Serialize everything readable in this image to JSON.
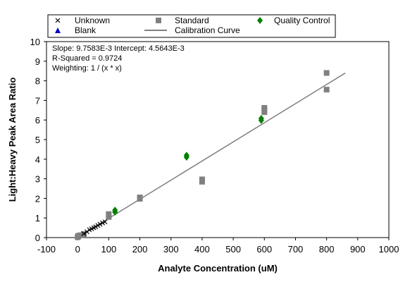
{
  "chart_data": {
    "type": "scatter",
    "title": "",
    "xlabel": "Analyte Concentration (uM)",
    "ylabel": "Light:Heavy Peak Area Ratio",
    "xlim": [
      -100,
      1000
    ],
    "ylim": [
      0,
      10
    ],
    "x_ticks": [
      -100,
      0,
      100,
      200,
      300,
      400,
      500,
      600,
      700,
      800,
      900,
      1000
    ],
    "y_ticks": [
      0,
      1,
      2,
      3,
      4,
      5,
      6,
      7,
      8,
      9,
      10
    ],
    "grid": false,
    "legend_position": "top",
    "annotations": [
      "Slope: 9.7583E-3 Intercept: 4.5643E-3",
      "R-Squared = 0.9724",
      "Weighting: 1 / (x * x)"
    ],
    "legend": [
      {
        "label": "Unknown",
        "marker": "cross",
        "color": "#000000"
      },
      {
        "label": "Standard",
        "marker": "square",
        "color": "#808080"
      },
      {
        "label": "Quality Control",
        "marker": "diamond",
        "color": "#008000"
      },
      {
        "label": "Blank",
        "marker": "triangle",
        "color": "#0000cc"
      },
      {
        "label": "Calibration Curve",
        "marker": "line",
        "color": "#808080"
      }
    ],
    "calibration_curve": {
      "name": "Calibration Curve",
      "slope": 0.0097583,
      "intercept": 0.0045643,
      "x_range": [
        0,
        860
      ],
      "color": "#808080"
    },
    "series": [
      {
        "name": "Standard",
        "marker": "square",
        "color": "#808080",
        "points": [
          {
            "x": 0,
            "y": 0.02
          },
          {
            "x": 1,
            "y": 0.05
          },
          {
            "x": 2,
            "y": 0.08
          },
          {
            "x": 5,
            "y": 0.1
          },
          {
            "x": 10,
            "y": 0.12
          },
          {
            "x": 20,
            "y": 0.18
          },
          {
            "x": 100,
            "y": 1.05
          },
          {
            "x": 100,
            "y": 1.2
          },
          {
            "x": 200,
            "y": 1.98
          },
          {
            "x": 200,
            "y": 2.05
          },
          {
            "x": 400,
            "y": 2.85
          },
          {
            "x": 400,
            "y": 2.97
          },
          {
            "x": 600,
            "y": 6.4
          },
          {
            "x": 600,
            "y": 6.5
          },
          {
            "x": 600,
            "y": 6.62
          },
          {
            "x": 800,
            "y": 7.55
          },
          {
            "x": 800,
            "y": 8.4
          }
        ]
      },
      {
        "name": "Quality Control",
        "marker": "diamond",
        "color": "#008000",
        "points": [
          {
            "x": 120,
            "y": 1.3
          },
          {
            "x": 120,
            "y": 1.4
          },
          {
            "x": 350,
            "y": 4.1
          },
          {
            "x": 350,
            "y": 4.2
          },
          {
            "x": 590,
            "y": 5.98
          },
          {
            "x": 590,
            "y": 6.08
          }
        ]
      },
      {
        "name": "Unknown",
        "marker": "cross",
        "color": "#000000",
        "points": [
          {
            "x": 20,
            "y": 0.2
          },
          {
            "x": 30,
            "y": 0.3
          },
          {
            "x": 38,
            "y": 0.4
          },
          {
            "x": 45,
            "y": 0.45
          },
          {
            "x": 52,
            "y": 0.5
          },
          {
            "x": 58,
            "y": 0.55
          },
          {
            "x": 65,
            "y": 0.62
          },
          {
            "x": 72,
            "y": 0.68
          },
          {
            "x": 80,
            "y": 0.75
          },
          {
            "x": 88,
            "y": 0.8
          }
        ]
      }
    ]
  }
}
